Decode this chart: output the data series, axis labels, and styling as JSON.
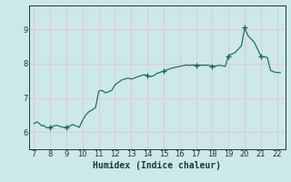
{
  "xlabel": "Humidex (Indice chaleur)",
  "bg_color": "#cce8e8",
  "line_color": "#1a6b5a",
  "marker_color": "#1a6b5a",
  "grid_color": "#e8c8c8",
  "tick_color": "#1a3a3a",
  "xlim": [
    6.7,
    22.5
  ],
  "ylim": [
    5.5,
    9.7
  ],
  "yticks": [
    6,
    7,
    8,
    9
  ],
  "xticks": [
    7,
    8,
    9,
    10,
    11,
    12,
    13,
    14,
    15,
    16,
    17,
    18,
    19,
    20,
    21,
    22
  ],
  "x": [
    7.0,
    7.1,
    7.2,
    7.3,
    7.4,
    7.5,
    7.6,
    7.7,
    7.8,
    8.0,
    8.2,
    8.4,
    8.6,
    8.8,
    9.0,
    9.2,
    9.4,
    9.6,
    9.8,
    10.0,
    10.2,
    10.4,
    10.6,
    10.8,
    11.0,
    11.2,
    11.4,
    11.6,
    11.8,
    12.0,
    12.2,
    12.4,
    12.6,
    12.8,
    13.0,
    13.2,
    13.4,
    13.6,
    13.8,
    14.0,
    14.2,
    14.4,
    14.6,
    14.8,
    15.0,
    15.2,
    15.4,
    15.6,
    15.8,
    16.0,
    16.2,
    16.4,
    16.6,
    16.8,
    17.0,
    17.2,
    17.4,
    17.6,
    17.8,
    18.0,
    18.2,
    18.4,
    18.6,
    18.8,
    19.0,
    19.2,
    19.4,
    19.6,
    19.8,
    20.0,
    20.2,
    20.4,
    20.6,
    20.8,
    21.0,
    21.2,
    21.4,
    21.6,
    21.8,
    22.0,
    22.2
  ],
  "y": [
    6.25,
    6.28,
    6.3,
    6.26,
    6.22,
    6.18,
    6.2,
    6.15,
    6.13,
    6.14,
    6.18,
    6.2,
    6.17,
    6.14,
    6.14,
    6.18,
    6.22,
    6.18,
    6.14,
    6.35,
    6.5,
    6.6,
    6.65,
    6.72,
    7.2,
    7.22,
    7.15,
    7.18,
    7.22,
    7.38,
    7.45,
    7.52,
    7.55,
    7.58,
    7.55,
    7.58,
    7.62,
    7.65,
    7.68,
    7.65,
    7.62,
    7.65,
    7.72,
    7.75,
    7.78,
    7.82,
    7.85,
    7.88,
    7.9,
    7.92,
    7.94,
    7.96,
    7.95,
    7.96,
    7.95,
    7.96,
    7.95,
    7.96,
    7.95,
    7.92,
    7.93,
    7.95,
    7.94,
    7.92,
    8.22,
    8.28,
    8.32,
    8.42,
    8.52,
    9.05,
    8.82,
    8.72,
    8.62,
    8.42,
    8.22,
    8.2,
    8.18,
    7.8,
    7.76,
    7.74,
    7.74
  ],
  "marker_x": [
    8.0,
    9.0,
    14.0,
    15.0,
    17.0,
    18.0,
    19.0,
    20.0,
    21.0
  ],
  "marker_y": [
    6.14,
    6.14,
    7.65,
    7.78,
    7.95,
    7.92,
    8.22,
    9.05,
    8.22
  ]
}
